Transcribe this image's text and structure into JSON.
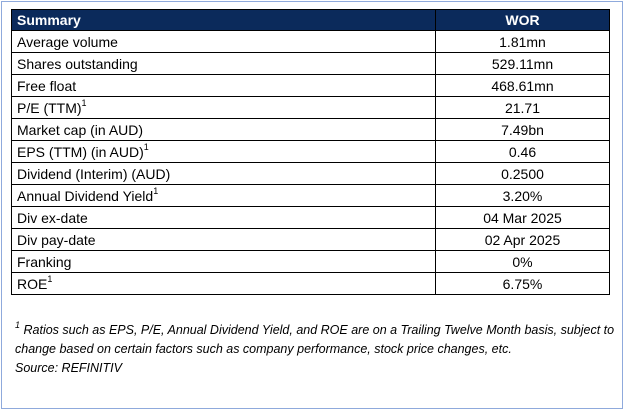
{
  "header": {
    "label": "Summary",
    "ticker": "WOR"
  },
  "rows": [
    {
      "label": "Average volume",
      "sup": "",
      "value": "1.81mn"
    },
    {
      "label": "Shares outstanding",
      "sup": "",
      "value": "529.11mn"
    },
    {
      "label": "Free float",
      "sup": "",
      "value": "468.61mn"
    },
    {
      "label": "P/E (TTM)",
      "sup": "1",
      "value": "21.71"
    },
    {
      "label": "Market cap (in AUD)",
      "sup": "",
      "value": "7.49bn"
    },
    {
      "label": "EPS (TTM) (in AUD)",
      "sup": "1",
      "value": "0.46"
    },
    {
      "label": "Dividend (Interim) (AUD)",
      "sup": "",
      "value": "0.2500"
    },
    {
      "label": "Annual Dividend Yield",
      "sup": "1",
      "value": "3.20%"
    },
    {
      "label": "Div ex-date",
      "sup": "",
      "value": "04 Mar 2025"
    },
    {
      "label": "Div pay-date",
      "sup": "",
      "value": "02 Apr 2025"
    },
    {
      "label": "Franking",
      "sup": "",
      "value": "0%"
    },
    {
      "label": "ROE",
      "sup": "1",
      "value": "6.75%"
    }
  ],
  "footnote": {
    "marker": "1",
    "text": " Ratios such as EPS, P/E, Annual Dividend Yield, and ROE are on a Trailing Twelve Month basis, subject to change based on certain factors such as company performance, stock price changes, etc.",
    "source": "Source: REFINITIV"
  },
  "colors": {
    "header_bg": "#0b2a5b",
    "header_text": "#ffffff",
    "frame_border": "#8faadc"
  }
}
